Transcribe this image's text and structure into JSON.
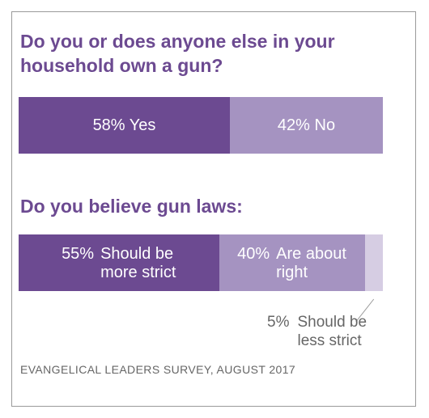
{
  "chart_data": [
    {
      "type": "bar",
      "orientation": "horizontal-stacked",
      "title": "Do you or does anyone else in your household own a gun?",
      "categories": [
        "Yes",
        "No"
      ],
      "values": [
        58,
        42
      ],
      "labels": [
        {
          "pct": "58%",
          "text": "Yes"
        },
        {
          "pct": "42%",
          "text": "No"
        }
      ],
      "colors": [
        "#6c4a91",
        "#a593c1"
      ]
    },
    {
      "type": "bar",
      "orientation": "horizontal-stacked",
      "title": "Do you believe gun laws:",
      "categories": [
        "Should be more strict",
        "Are about right",
        "Should be less strict"
      ],
      "values": [
        55,
        40,
        5
      ],
      "labels": [
        {
          "pct": "55%",
          "text": "Should be more strict"
        },
        {
          "pct": "40%",
          "text": "Are about right"
        },
        {
          "pct": "5%",
          "text": "Should be less strict"
        }
      ],
      "colors": [
        "#6c4a91",
        "#a593c1",
        "#d6cde3"
      ]
    }
  ],
  "source": "EVANGELICAL LEADERS SURVEY, AUGUST 2017"
}
